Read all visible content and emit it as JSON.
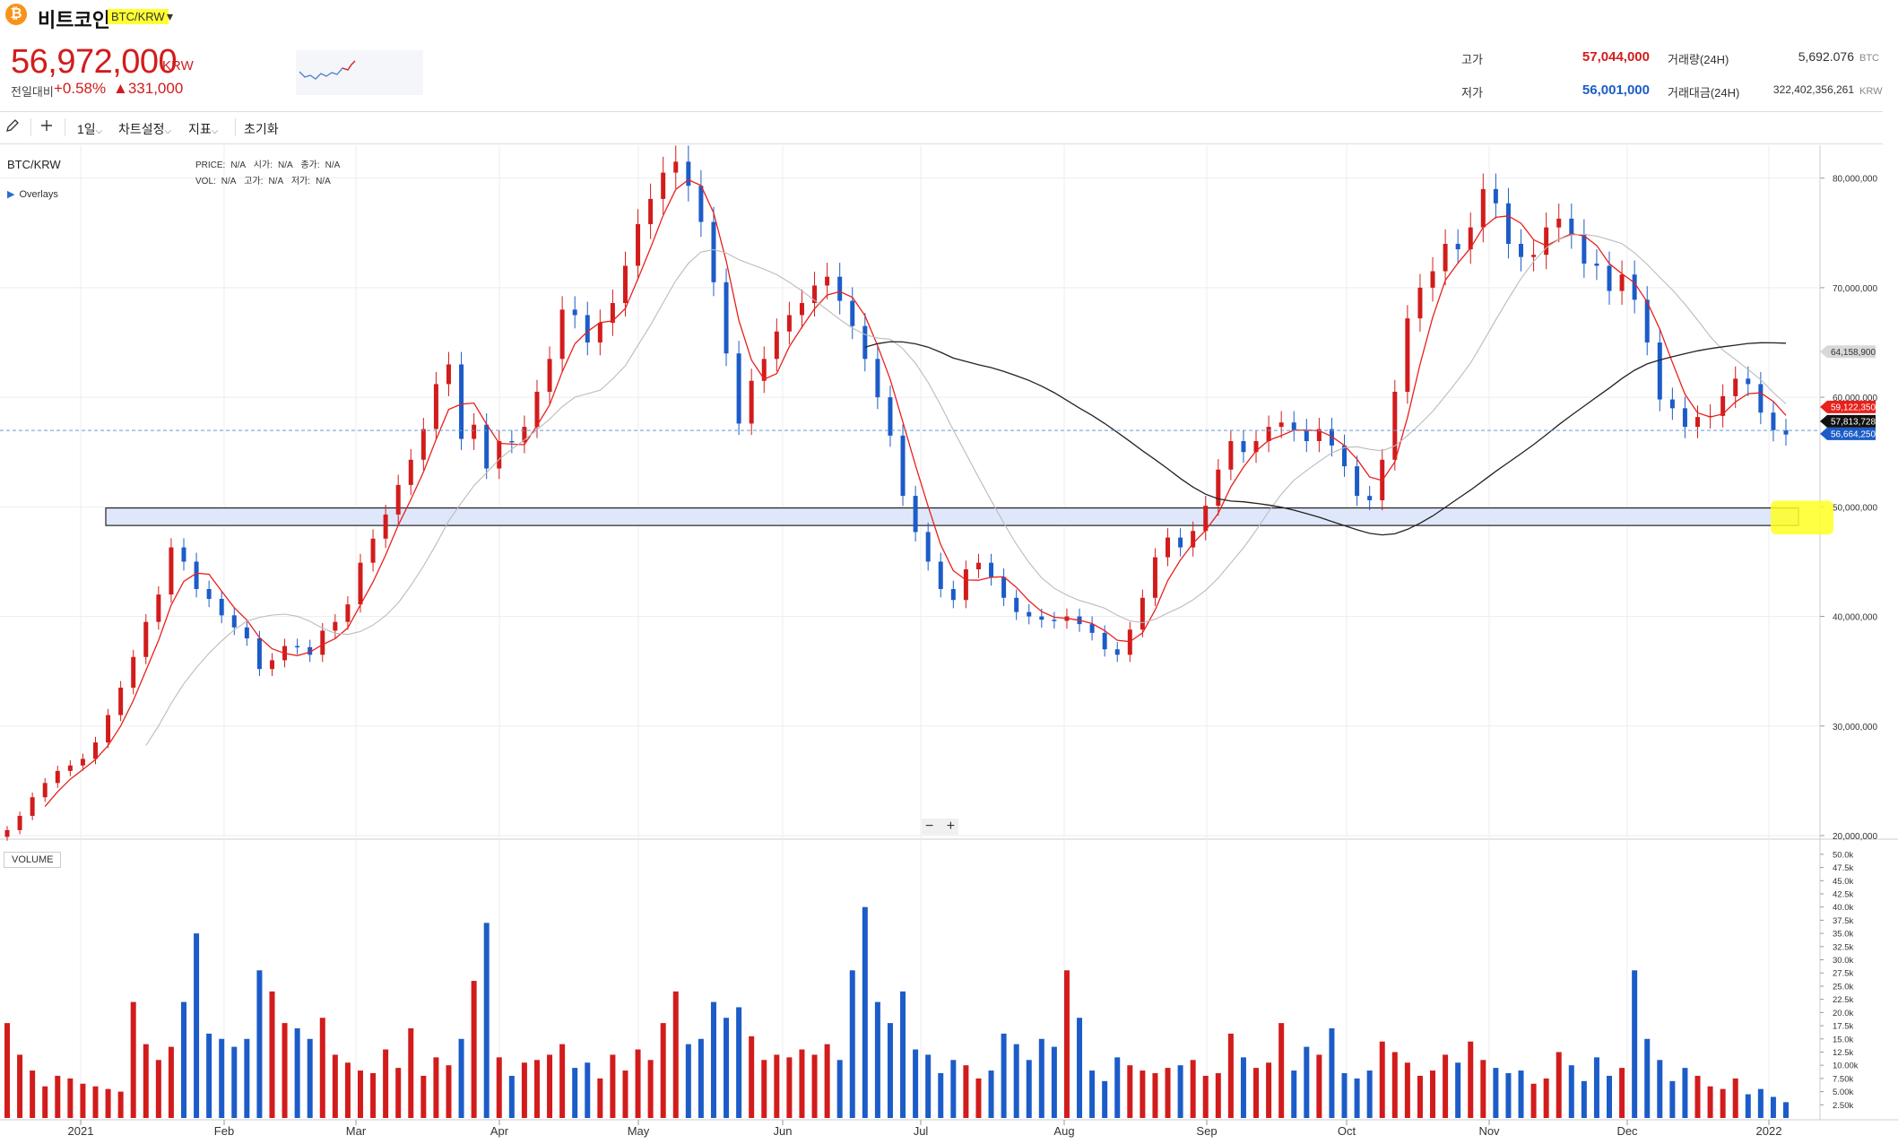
{
  "header": {
    "coin_icon": "₿",
    "coin_name": "비트코인",
    "pair": "BTC/KRW",
    "pair_caret": "▾",
    "price": "56,972,000",
    "price_unit": "KRW",
    "change_label": "전일대비",
    "change_pct": "+0.58%",
    "change_amt": "▲331,000",
    "stats": {
      "high_label": "고가",
      "high_value": "57,044,000",
      "low_label": "저가",
      "low_value": "56,001,000",
      "vol_label": "거래량(24H)",
      "vol_value": "5,692.076",
      "vol_unit": "BTC",
      "amount_label": "거래대금(24H)",
      "amount_value": "322,402,356,261",
      "amount_unit": "KRW"
    },
    "colors": {
      "up": "#d21c1c",
      "down": "#1c5cc8",
      "highlight": "#ffff33"
    }
  },
  "toolbar": {
    "pencil_icon": "pencil-icon",
    "plus_icon": "plus-icon",
    "interval": "1일",
    "chart_settings": "차트설정",
    "indicators": "지표",
    "reset": "초기화",
    "caret": "⌵"
  },
  "chart": {
    "pair": "BTC/KRW",
    "overlays": "Overlays",
    "legend": {
      "price_label": "PRICE:",
      "price_val": "N/A",
      "open_label": "시가:",
      "open_val": "N/A",
      "close_label": "종가:",
      "close_val": "N/A",
      "vol_label": "VOL:",
      "vol_val": "N/A",
      "high_label": "고가:",
      "high_val": "N/A",
      "low_label": "저가:",
      "low_val": "N/A"
    },
    "volume_label": "VOLUME",
    "zoom_minus": "−",
    "zoom_plus": "+"
  },
  "chart_data": {
    "type": "candlestick",
    "price_axis": {
      "ticks": [
        "80,000,000",
        "70,000,000",
        "60,000,000",
        "50,000,000",
        "40,000,000",
        "30,000,000",
        "20,000,000"
      ],
      "values": [
        80000000,
        70000000,
        60000000,
        50000000,
        40000000,
        30000000,
        20000000
      ],
      "ylim": [
        20000000,
        83000000
      ]
    },
    "volume_axis": {
      "ticks": [
        "50.0k",
        "47.5k",
        "45.0k",
        "42.5k",
        "40.0k",
        "37.5k",
        "35.0k",
        "32.5k",
        "30.0k",
        "27.5k",
        "25.0k",
        "22.5k",
        "20.0k",
        "17.5k",
        "15.0k",
        "12.5k",
        "10.00k",
        "7.50k",
        "5.00k",
        "2.50k"
      ],
      "values": [
        50000,
        47500,
        45000,
        42500,
        40000,
        37500,
        35000,
        32500,
        30000,
        27500,
        25000,
        22500,
        20000,
        17500,
        15000,
        12500,
        10000,
        7500,
        5000,
        2500
      ],
      "ylim": [
        0,
        51000
      ]
    },
    "months": [
      "2021",
      "Feb",
      "Mar",
      "Apr",
      "May",
      "Jun",
      "Jul",
      "Aug",
      "Sep",
      "Oct",
      "Nov",
      "Dec",
      "2022"
    ],
    "price_tags": [
      {
        "label": "64,158,900",
        "value": 64158900,
        "color": "#d8d8d8",
        "text_color": "#333"
      },
      {
        "label": "59,122,350",
        "value": 59122350,
        "color": "#e8201c",
        "text_color": "#fff"
      },
      {
        "label": "57,813,728",
        "value": 57813728,
        "color": "#111111",
        "text_color": "#fff"
      },
      {
        "label": "56,664,250",
        "value": 56664250,
        "color": "#1c5cc8",
        "text_color": "#fff"
      }
    ],
    "current_price_line": 56972000,
    "support_zone": [
      48300000,
      49900000
    ],
    "closes": [
      20500000,
      21800000,
      23500000,
      24800000,
      25900000,
      26400000,
      27000000,
      28500000,
      31000000,
      33500000,
      36300000,
      39500000,
      42000000,
      46300000,
      45000000,
      42500000,
      41600000,
      40100000,
      39000000,
      38000000,
      35200000,
      36000000,
      37300000,
      37200000,
      36500000,
      38700000,
      39500000,
      41100000,
      44900000,
      47100000,
      49300000,
      52000000,
      54300000,
      57100000,
      61200000,
      63000000,
      56200000,
      57500000,
      53500000,
      56000000,
      55900000,
      57300000,
      60500000,
      63500000,
      68000000,
      67500000,
      65000000,
      66800000,
      68600000,
      72000000,
      75800000,
      78100000,
      80500000,
      81500000,
      79300000,
      76000000,
      70500000,
      64000000,
      57600000,
      61500000,
      63500000,
      66000000,
      67500000,
      68600000,
      70200000,
      71000000,
      68800000,
      66500000,
      63500000,
      60000000,
      56500000,
      51000000,
      47700000,
      45000000,
      42500000,
      41500000,
      44300000,
      44900000,
      43600000,
      41700000,
      40400000,
      40000000,
      39700000,
      39600000,
      40000000,
      39300000,
      38500000,
      37000000,
      36500000,
      38800000,
      41700000,
      45400000,
      47200000,
      46300000,
      47800000,
      50100000,
      53400000,
      56000000,
      55000000,
      56000000,
      57300000,
      57700000,
      57000000,
      56000000,
      57100000,
      55600000,
      53700000,
      51000000,
      50600000,
      54300000,
      60500000,
      67200000,
      70000000,
      71500000,
      74000000,
      73500000,
      75500000,
      79000000,
      77700000,
      74000000,
      72800000,
      73000000,
      75500000,
      76300000,
      74900000,
      72200000,
      72000000,
      69700000,
      71200000,
      68900000,
      65000000,
      59800000,
      59000000,
      57300000,
      58200000,
      58300000,
      60100000,
      61700000,
      61200000,
      58600000,
      57000000,
      56600000
    ],
    "vol_values": [
      18000,
      12000,
      9000,
      6000,
      8000,
      7500,
      6500,
      6000,
      5500,
      5000,
      22000,
      14000,
      11000,
      13500,
      22000,
      35000,
      16000,
      15000,
      13500,
      15000,
      28000,
      24000,
      18000,
      17000,
      15000,
      19000,
      12000,
      10500,
      9000,
      8500,
      13000,
      9500,
      17000,
      8000,
      11500,
      10000,
      15000,
      26000,
      37000,
      11500,
      8000,
      10500,
      11000,
      12000,
      14000,
      9500,
      10500,
      7500,
      12000,
      9000,
      13000,
      11000,
      18000,
      24000,
      14000,
      15000,
      22000,
      19000,
      21000,
      15500,
      11000,
      12000,
      11500,
      13000,
      12000,
      14000,
      11000,
      28000,
      40000,
      22000,
      18000,
      24000,
      13000,
      12000,
      8500,
      11000,
      10000,
      7500,
      9000,
      16000,
      14000,
      11000,
      15000,
      13500,
      28000,
      19000,
      9000,
      7000,
      11500,
      10000,
      9000,
      8500,
      9500,
      10000,
      11000,
      8000,
      8500,
      16000,
      11500,
      9500,
      10500,
      18000,
      9000,
      13500,
      12000,
      17000,
      8500,
      7500,
      9000,
      14500,
      12500,
      10500,
      8000,
      9000,
      12000,
      10500,
      14500,
      11000,
      9500,
      8500,
      9000,
      6500,
      7500,
      12500,
      10000,
      7000,
      11500,
      8000,
      9500,
      28000,
      15000,
      11000,
      7000,
      9500,
      8000,
      6000,
      5500,
      7500,
      4500,
      5500,
      4000,
      3000
    ],
    "ma_short_color": "#e8201c",
    "ma_mid_color": "#bbbbbb",
    "ma_long_color": "#222222"
  }
}
